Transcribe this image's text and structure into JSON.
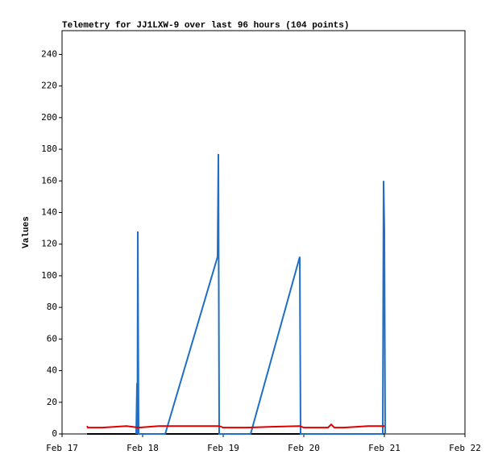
{
  "chart_data": {
    "type": "line",
    "title": "Telemetry for JJ1LXW-9 over last 96 hours (104 points)",
    "y_label": "Values",
    "xlim": [
      17,
      22
    ],
    "xticks": [
      {
        "value": 17,
        "label": "Feb 17"
      },
      {
        "value": 18,
        "label": "Feb 18"
      },
      {
        "value": 19,
        "label": "Feb 19"
      },
      {
        "value": 20,
        "label": "Feb 20"
      },
      {
        "value": 21,
        "label": "Feb 21"
      },
      {
        "value": 22,
        "label": "Feb 22"
      }
    ],
    "ylim": [
      0,
      255
    ],
    "yticks": [
      0,
      20,
      40,
      60,
      80,
      100,
      120,
      140,
      160,
      180,
      200,
      220,
      240
    ],
    "series": [
      {
        "color": "#000000",
        "x": [
          17.31,
          21.0
        ],
        "values": [
          0,
          0
        ]
      },
      {
        "color": "#1f6fc6",
        "x": [
          17.92,
          17.93,
          17.935,
          17.94,
          17.95,
          18.28,
          18.93,
          18.94,
          18.95,
          19.34,
          19.95,
          19.96,
          20.98,
          20.99,
          21.0,
          21.01
        ],
        "values": [
          0,
          32,
          0,
          128,
          0,
          0,
          112,
          177,
          0,
          0,
          112,
          0,
          0,
          160,
          128,
          0
        ]
      },
      {
        "color": "#e00000",
        "x": [
          17.31,
          17.32,
          17.5,
          17.8,
          17.95,
          18.2,
          18.5,
          18.95,
          19.0,
          19.3,
          19.6,
          19.95,
          20.0,
          20.3,
          20.34,
          20.38,
          20.5,
          20.8,
          21.0
        ],
        "values": [
          5,
          4,
          4,
          5,
          4,
          5,
          5,
          5,
          4,
          4,
          4.5,
          5,
          4,
          4,
          6,
          4,
          4,
          5,
          5
        ]
      }
    ]
  }
}
